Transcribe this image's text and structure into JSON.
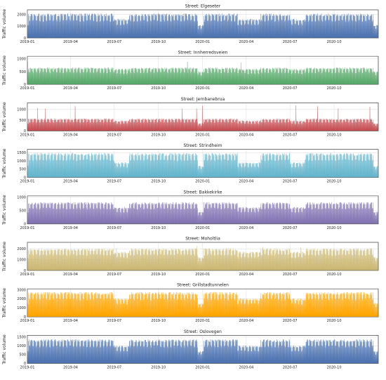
{
  "chart_data": [
    {
      "type": "area",
      "title": "Street: Elgeseter",
      "ylabel": "Traffic volume",
      "color": "#4C72B0",
      "yticks": [
        0,
        1000,
        2000
      ],
      "ylim": [
        0,
        2400
      ],
      "typical_peak": 2050,
      "typical_low": 60,
      "summer_dip_peak": 1600,
      "holiday_peak": 1100
    },
    {
      "type": "area",
      "title": "Street: Innherredsveien",
      "ylabel": "Traffic volume",
      "color": "#55A868",
      "yticks": [
        0,
        500,
        1000
      ],
      "ylim": [
        0,
        1100
      ],
      "typical_peak": 650,
      "typical_low": 20,
      "summer_dip_peak": 600,
      "holiday_peak": 500,
      "max_spike": 1000
    },
    {
      "type": "area",
      "title": "Street: Jernbanebrua",
      "ylabel": "Traffic volume",
      "color": "#C44E52",
      "yticks": [
        0,
        500,
        1000
      ],
      "ylim": [
        0,
        1300
      ],
      "typical_peak": 560,
      "typical_low": 30,
      "summer_dip_peak": 470,
      "holiday_peak": 350,
      "max_spike": 1200
    },
    {
      "type": "area",
      "title": "Street: Strindheim",
      "ylabel": "Traffic volume",
      "color": "#64B5CD",
      "yticks": [
        0,
        500,
        1000,
        1500
      ],
      "ylim": [
        0,
        1700
      ],
      "typical_peak": 1450,
      "typical_low": 60,
      "summer_dip_peak": 900,
      "holiday_peak": 700
    },
    {
      "type": "area",
      "title": "Street: Bakkekirke",
      "ylabel": "Traffic volume",
      "color": "#8172B2",
      "yticks": [
        0,
        500,
        1000
      ],
      "ylim": [
        0,
        1050
      ],
      "typical_peak": 800,
      "typical_low": 30,
      "summer_dip_peak": 620,
      "holiday_peak": 450
    },
    {
      "type": "area",
      "title": "Street: Moholtlia",
      "ylabel": "Traffic volume",
      "color": "#CCB974",
      "yticks": [
        0,
        1000,
        2000
      ],
      "ylim": [
        0,
        2600
      ],
      "typical_peak": 2000,
      "typical_low": 80,
      "summer_dip_peak": 1700,
      "holiday_peak": 1200,
      "max_spike": 2400
    },
    {
      "type": "area",
      "title": "Street: Grillstadtunnelen",
      "ylabel": "Traffic volume",
      "color": "#FFA500",
      "yticks": [
        0,
        1000,
        2000,
        3000
      ],
      "ylim": [
        0,
        3100
      ],
      "typical_peak": 2700,
      "typical_low": 100,
      "summer_dip_peak": 2000,
      "holiday_peak": 1500
    },
    {
      "type": "area",
      "title": "Street: Oslovegen",
      "ylabel": "Traffic volume",
      "color": "#4C72B0",
      "yticks": [
        0,
        500,
        1000,
        1500
      ],
      "ylim": [
        0,
        1600
      ],
      "typical_peak": 1350,
      "typical_low": 40,
      "summer_dip_peak": 1000,
      "holiday_peak": 700
    }
  ],
  "x_axis": {
    "start": "2019-01-01",
    "end": "2020-12-31",
    "ticks": [
      "2019-01",
      "2019-04",
      "2019-07",
      "2019-10",
      "2020-01",
      "2020-04",
      "2020-07",
      "2020-10"
    ]
  }
}
